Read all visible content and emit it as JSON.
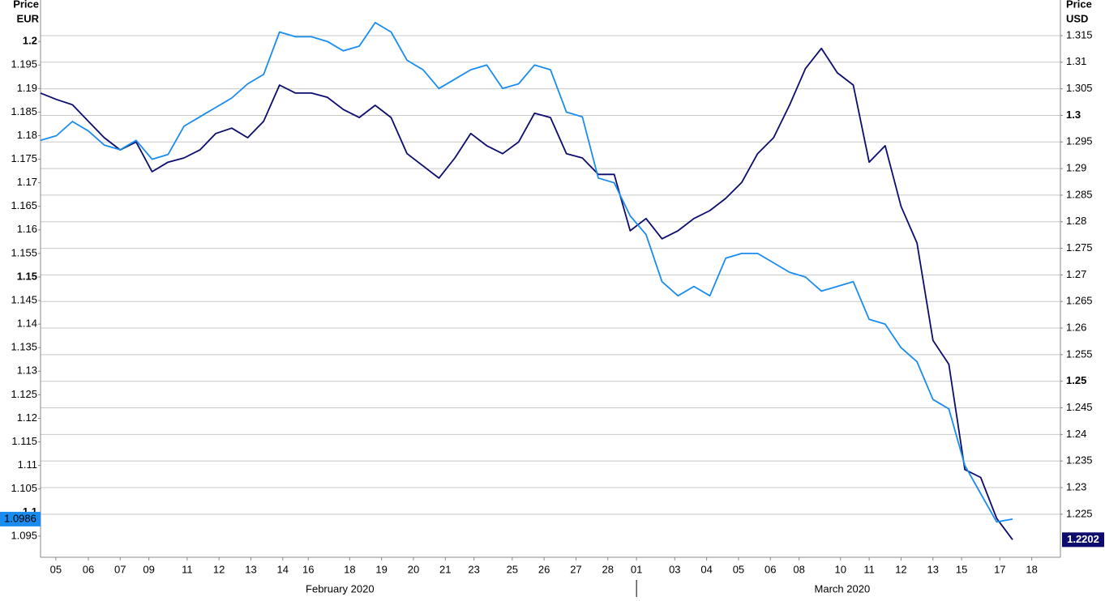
{
  "chart_data": {
    "type": "line",
    "ylabel": [
      "Price",
      "EUR"
    ],
    "y2label": [
      "Price",
      "USD"
    ],
    "x": [
      0,
      0.5,
      1,
      1.5,
      2,
      2.5,
      3,
      3.5,
      4,
      4.5,
      5,
      5.5,
      6,
      6.5,
      7,
      7.5,
      8,
      8.5,
      9,
      9.5,
      10,
      10.5,
      11,
      11.5,
      12,
      12.5,
      13,
      13.5,
      14,
      14.5,
      15,
      15.5,
      16,
      16.5,
      17,
      17.5,
      18,
      18.5,
      19,
      19.5,
      20,
      20.5,
      21,
      21.5,
      22,
      22.5,
      23,
      23.5,
      24,
      24.5,
      25,
      25.5,
      26,
      26.5,
      27,
      27.5,
      28,
      28.5,
      29,
      29.5,
      30,
      30.5
    ],
    "xlim": [
      0,
      32
    ],
    "xticks": [
      {
        "value": 0.48,
        "label": "05"
      },
      {
        "value": 1.5,
        "label": "06"
      },
      {
        "value": 2.5,
        "label": "07"
      },
      {
        "value": 3.4,
        "label": "09"
      },
      {
        "value": 4.6,
        "label": "11"
      },
      {
        "value": 5.6,
        "label": "12"
      },
      {
        "value": 6.6,
        "label": "13"
      },
      {
        "value": 7.6,
        "label": "14"
      },
      {
        "value": 8.4,
        "label": "16"
      },
      {
        "value": 9.7,
        "label": "18"
      },
      {
        "value": 10.7,
        "label": "19"
      },
      {
        "value": 11.7,
        "label": "20"
      },
      {
        "value": 12.7,
        "label": "21"
      },
      {
        "value": 13.6,
        "label": "23"
      },
      {
        "value": 14.8,
        "label": "25"
      },
      {
        "value": 15.8,
        "label": "26"
      },
      {
        "value": 16.8,
        "label": "27"
      },
      {
        "value": 17.8,
        "label": "28"
      },
      {
        "value": 18.7,
        "label": "01"
      },
      {
        "value": 19.9,
        "label": "03"
      },
      {
        "value": 20.9,
        "label": "04"
      },
      {
        "value": 21.9,
        "label": "05"
      },
      {
        "value": 22.9,
        "label": "06"
      },
      {
        "value": 23.8,
        "label": "08"
      },
      {
        "value": 25.1,
        "label": "10"
      },
      {
        "value": 26.0,
        "label": "11"
      },
      {
        "value": 27.0,
        "label": "12"
      },
      {
        "value": 28.0,
        "label": "13"
      },
      {
        "value": 28.9,
        "label": "15"
      },
      {
        "value": 30.1,
        "label": "17"
      },
      {
        "value": 31.1,
        "label": "18"
      }
    ],
    "months": [
      "February 2020",
      "March 2020"
    ],
    "ylim": [
      1.0905,
      1.2088
    ],
    "yticks": [
      1.095,
      1.1,
      1.105,
      1.11,
      1.115,
      1.12,
      1.125,
      1.13,
      1.135,
      1.14,
      1.145,
      1.15,
      1.155,
      1.16,
      1.165,
      1.17,
      1.175,
      1.18,
      1.185,
      1.19,
      1.195,
      1.2
    ],
    "y2lim": [
      1.2169,
      1.3217
    ],
    "y2ticks": [
      1.225,
      1.23,
      1.235,
      1.24,
      1.245,
      1.25,
      1.255,
      1.26,
      1.265,
      1.27,
      1.275,
      1.28,
      1.285,
      1.29,
      1.295,
      1.3,
      1.305,
      1.31,
      1.315
    ],
    "grid": true,
    "series": [
      {
        "color": "#1a8cf0",
        "axis": "y",
        "values": [
          1.179,
          1.18,
          1.183,
          1.181,
          1.178,
          1.177,
          1.179,
          1.175,
          1.176,
          1.182,
          1.184,
          1.186,
          1.188,
          1.191,
          1.193,
          1.202,
          1.201,
          1.201,
          1.2,
          1.198,
          1.199,
          1.204,
          1.202,
          1.196,
          1.194,
          1.19,
          1.192,
          1.194,
          1.195,
          1.19,
          1.191,
          1.195,
          1.194,
          1.185,
          1.184,
          1.171,
          1.17,
          1.163,
          1.159,
          1.149,
          1.146,
          1.148,
          1.146,
          1.154,
          1.155,
          1.155,
          1.153,
          1.151,
          1.15,
          1.147,
          1.148,
          1.149,
          1.141,
          1.14,
          1.135,
          1.132,
          1.124,
          1.122,
          1.11,
          1.104,
          1.098,
          1.0986
        ]
      },
      {
        "color": "#0c0c6e",
        "axis": "y2",
        "values": [
          1.3042,
          1.303,
          1.302,
          1.2989,
          1.2958,
          1.2935,
          1.295,
          1.2894,
          1.2912,
          1.292,
          1.2935,
          1.2966,
          1.2976,
          1.2958,
          1.2989,
          1.3057,
          1.3042,
          1.3042,
          1.3034,
          1.3011,
          1.2996,
          1.3019,
          1.2996,
          1.2928,
          1.2905,
          1.2882,
          1.292,
          1.2966,
          1.2943,
          1.2928,
          1.295,
          1.3004,
          1.2996,
          1.2928,
          1.292,
          1.2889,
          1.2889,
          1.2783,
          1.2806,
          1.2768,
          1.2783,
          1.2806,
          1.2821,
          1.2844,
          1.2874,
          1.2928,
          1.2958,
          1.3019,
          1.3088,
          1.3126,
          1.308,
          1.3057,
          1.2912,
          1.2943,
          1.2829,
          1.276,
          1.2577,
          1.2532,
          1.2334,
          1.2319,
          1.2242,
          1.2202
        ]
      }
    ]
  }
}
